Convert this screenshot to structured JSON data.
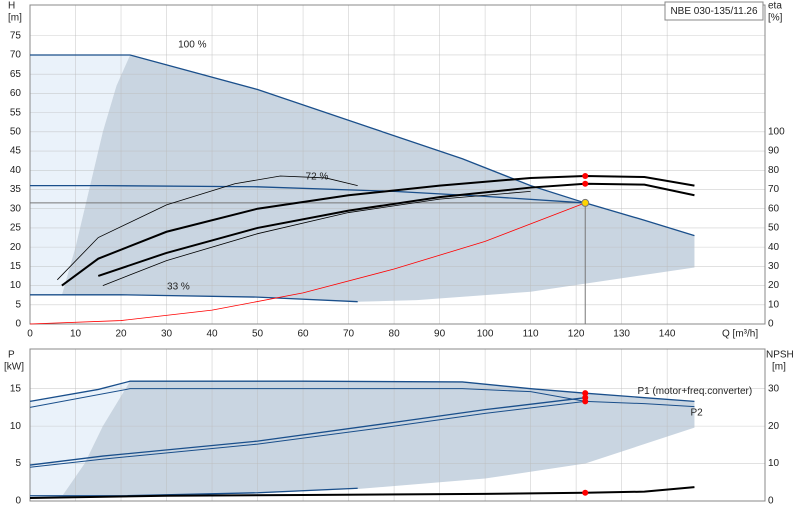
{
  "chart_data": [
    {
      "type": "line",
      "title": "NBE 030-135/11.26",
      "x_label": "Q [m³/h]",
      "y_label": "H",
      "y_unit": "[m]",
      "y2_label": "eta",
      "y2_unit": "[%]",
      "xlim": [
        0,
        161.5
      ],
      "ylim": [
        0,
        83
      ],
      "y2lim": [
        0,
        166
      ],
      "grid": true,
      "xticks": [
        0,
        10,
        20,
        30,
        40,
        50,
        60,
        70,
        80,
        90,
        100,
        110,
        120,
        130,
        140
      ],
      "yticks": [
        0,
        5,
        10,
        15,
        20,
        25,
        30,
        35,
        40,
        45,
        50,
        55,
        60,
        65,
        70,
        75
      ],
      "y2ticks": [
        0,
        10,
        20,
        30,
        40,
        50,
        60,
        70,
        80,
        90,
        100
      ],
      "regions": [
        {
          "color": "#eaf2fa",
          "x": [
            0,
            22,
            19,
            16,
            13,
            10,
            7,
            0
          ],
          "values": [
            70,
            70,
            62,
            50,
            35,
            20,
            7.5,
            7.5
          ]
        },
        {
          "color": "#c9d5e1",
          "x": [
            7,
            10,
            13,
            16,
            19,
            22,
            50,
            75,
            95,
            110,
            122,
            135,
            146,
            146,
            110,
            85,
            72,
            50,
            20,
            7
          ],
          "values": [
            7.5,
            20,
            35,
            50,
            62,
            70,
            61,
            51,
            43,
            36,
            31.5,
            27,
            23,
            14.7,
            8.4,
            6.2,
            5.8,
            7,
            7.6,
            7.5
          ]
        }
      ],
      "series": [
        {
          "name": "100 %",
          "color": "#1a4f8b",
          "line_width": 1.3,
          "x": [
            0,
            22,
            50,
            75,
            95,
            110,
            122,
            135,
            146
          ],
          "values": [
            70,
            70,
            61,
            51,
            43,
            36,
            31.5,
            27,
            23
          ]
        },
        {
          "name": "72 %",
          "color": "#1a4f8b",
          "line_width": 1.3,
          "x": [
            0,
            16,
            50,
            80,
            100,
            122
          ],
          "values": [
            36,
            36,
            35.7,
            34.5,
            33.2,
            31.5
          ]
        },
        {
          "name": "33 %",
          "color": "#1a4f8b",
          "line_width": 1.3,
          "x": [
            0,
            20,
            50,
            72
          ],
          "values": [
            7.6,
            7.6,
            7,
            5.8
          ]
        },
        {
          "color": "#ff0000",
          "line_width": 0.8,
          "x": [
            0,
            20,
            40,
            60,
            80,
            100,
            122
          ],
          "values": [
            0,
            0.9,
            3.6,
            8.1,
            14.3,
            21.5,
            31.5
          ]
        },
        {
          "color": "#000000",
          "line_width": 2,
          "axis": "y2",
          "x": [
            7,
            15,
            30,
            50,
            70,
            90,
            110,
            122,
            135,
            146
          ],
          "values": [
            20,
            34,
            48,
            60,
            67,
            72,
            76,
            77,
            76.5,
            72
          ]
        },
        {
          "color": "#000000",
          "line_width": 2,
          "axis": "y2",
          "x": [
            15,
            30,
            50,
            70,
            90,
            110,
            122,
            135,
            146
          ],
          "values": [
            25,
            37,
            50,
            59,
            66,
            71,
            73,
            72.5,
            67
          ]
        },
        {
          "color": "#000000",
          "line_width": 0.8,
          "axis": "y2",
          "x": [
            6,
            15,
            30,
            45,
            55,
            65,
            72
          ],
          "values": [
            23,
            45,
            62,
            73,
            77,
            76,
            72
          ]
        },
        {
          "color": "#000000",
          "line_width": 0.8,
          "axis": "y2",
          "x": [
            16,
            30,
            50,
            70,
            90,
            110
          ],
          "values": [
            20,
            33,
            47,
            58,
            65,
            69
          ]
        }
      ],
      "points": [
        {
          "x": 122,
          "value": 77,
          "axis": "y2",
          "color": "#ff0000"
        },
        {
          "x": 122,
          "value": 73,
          "axis": "y2",
          "color": "#ff0000"
        },
        {
          "x": 122,
          "value": 31.5,
          "color": "#ffd400"
        }
      ]
    },
    {
      "type": "line",
      "y_label": "P",
      "y_unit": "[kW]",
      "y2_label": "NPSH",
      "y2_unit": "[m]",
      "xlim": [
        0,
        161.5
      ],
      "ylim": [
        0,
        20.3
      ],
      "y2lim": [
        0,
        40.6
      ],
      "grid": true,
      "yticks": [
        0,
        5,
        10,
        15
      ],
      "y2ticks": [
        0,
        10,
        20,
        30
      ],
      "regions": [
        {
          "color": "#eaf2fa",
          "x": [
            0,
            15,
            22,
            20,
            16,
            12,
            7,
            0
          ],
          "values": [
            13.3,
            14.9,
            16,
            14,
            10,
            5,
            0.6,
            0.6
          ]
        },
        {
          "color": "#c9d5e1",
          "x": [
            7,
            12,
            16,
            20,
            22,
            60,
            95,
            110,
            122,
            135,
            146,
            146,
            122,
            100,
            72,
            50,
            20,
            7
          ],
          "values": [
            0.6,
            5,
            10,
            14,
            16,
            16,
            15.9,
            15,
            14.4,
            13.8,
            13.3,
            9.8,
            5,
            3,
            1.6,
            1.0,
            0.6,
            0.6
          ]
        }
      ],
      "series": [
        {
          "name": "P1 (motor+freq.converter)",
          "color": "#1a4f8b",
          "line_width": 1.3,
          "x": [
            0,
            15,
            22,
            60,
            95,
            110,
            122,
            135,
            146
          ],
          "values": [
            13.3,
            14.9,
            16,
            16,
            15.9,
            15,
            14.4,
            13.8,
            13.3
          ]
        },
        {
          "name": "P2",
          "color": "#1a4f8b",
          "line_width": 1,
          "x": [
            0,
            22,
            60,
            95,
            110,
            122,
            135,
            146
          ],
          "values": [
            12.5,
            15,
            15,
            15,
            14.6,
            13.3,
            13.0,
            12.6
          ]
        },
        {
          "color": "#1a4f8b",
          "line_width": 1.3,
          "x": [
            0,
            16,
            50,
            80,
            100,
            122
          ],
          "values": [
            4.8,
            6,
            8,
            10.5,
            12.2,
            13.8
          ]
        },
        {
          "color": "#1a4f8b",
          "line_width": 1,
          "x": [
            0,
            16,
            50,
            80,
            100,
            122
          ],
          "values": [
            4.5,
            5.6,
            7.6,
            10,
            11.7,
            13.3
          ]
        },
        {
          "color": "#1a4f8b",
          "line_width": 1.3,
          "x": [
            0,
            20,
            50,
            72
          ],
          "values": [
            0.7,
            0.7,
            1.1,
            1.7
          ]
        },
        {
          "color": "#000000",
          "line_width": 2,
          "axis": "y2",
          "x": [
            0,
            30,
            60,
            100,
            122,
            135,
            146
          ],
          "values": [
            0.8,
            1.4,
            1.6,
            1.9,
            2.2,
            2.5,
            3.7
          ]
        }
      ],
      "points": [
        {
          "x": 122,
          "value": 14.4,
          "color": "#ff0000"
        },
        {
          "x": 122,
          "value": 13.8,
          "color": "#ff0000"
        },
        {
          "x": 122,
          "value": 13.3,
          "color": "#ff0000"
        },
        {
          "x": 122,
          "value": 2.2,
          "axis": "y2",
          "color": "#ff0000"
        }
      ]
    }
  ]
}
